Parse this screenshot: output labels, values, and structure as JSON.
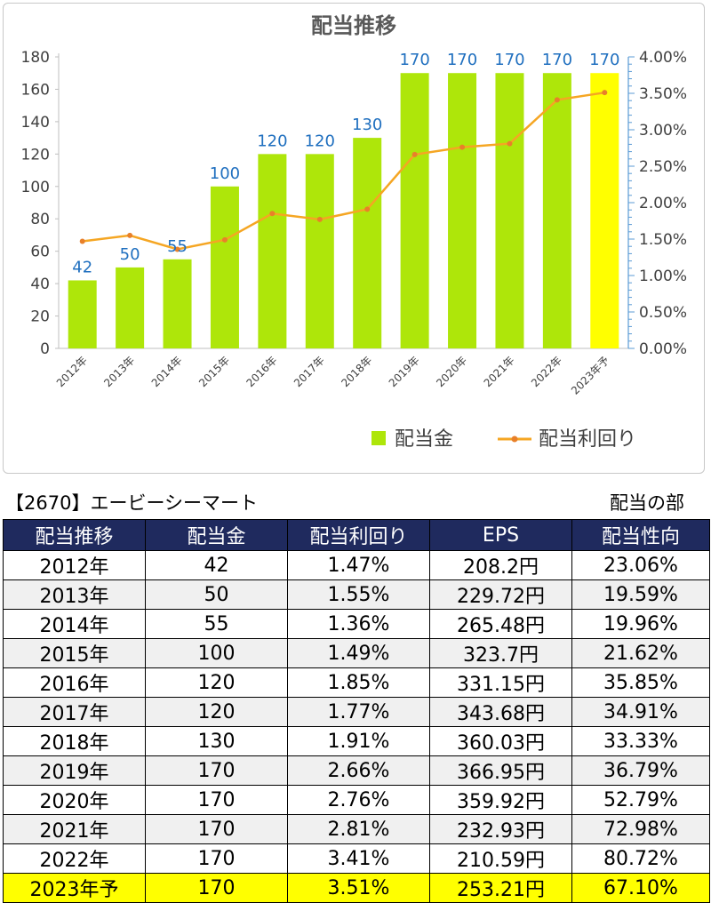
{
  "chart_data": {
    "type": "bar",
    "title": "配当推移",
    "categories": [
      "2012年",
      "2013年",
      "2014年",
      "2015年",
      "2016年",
      "2017年",
      "2018年",
      "2019年",
      "2020年",
      "2021年",
      "2022年",
      "2023年予"
    ],
    "series": [
      {
        "name": "配当金",
        "type": "bar",
        "values": [
          42,
          50,
          55,
          100,
          120,
          120,
          130,
          170,
          170,
          170,
          170,
          170
        ],
        "color": "#aee60a",
        "highlight_last_color": "#ffff00"
      },
      {
        "name": "配当利回り",
        "type": "line",
        "axis": "right",
        "values": [
          1.47,
          1.55,
          1.36,
          1.49,
          1.85,
          1.77,
          1.91,
          2.66,
          2.76,
          2.81,
          3.41,
          3.51
        ],
        "color": "#f5a623"
      }
    ],
    "y_left": {
      "min": 0,
      "max": 180,
      "ticks": [
        0,
        20,
        40,
        60,
        80,
        100,
        120,
        140,
        160,
        180
      ]
    },
    "y_right": {
      "min": 0,
      "max": 4,
      "ticks": [
        "0.00%",
        "0.50%",
        "1.00%",
        "1.50%",
        "2.00%",
        "2.50%",
        "3.00%",
        "3.50%",
        "4.00%"
      ]
    },
    "data_label_color": "#1f6fbf",
    "legend_position": "bottom-right"
  },
  "table": {
    "title": "【2670】エービーシーマート",
    "subtitle": "配当の部",
    "columns": [
      "配当推移",
      "配当金",
      "配当利回り",
      "EPS",
      "配当性向"
    ],
    "rows": [
      [
        "2012年",
        "42",
        "1.47%",
        "208.2円",
        "23.06%"
      ],
      [
        "2013年",
        "50",
        "1.55%",
        "229.72円",
        "19.59%"
      ],
      [
        "2014年",
        "55",
        "1.36%",
        "265.48円",
        "19.96%"
      ],
      [
        "2015年",
        "100",
        "1.49%",
        "323.7円",
        "21.62%"
      ],
      [
        "2016年",
        "120",
        "1.85%",
        "331.15円",
        "35.85%"
      ],
      [
        "2017年",
        "120",
        "1.77%",
        "343.68円",
        "34.91%"
      ],
      [
        "2018年",
        "130",
        "1.91%",
        "360.03円",
        "33.33%"
      ],
      [
        "2019年",
        "170",
        "2.66%",
        "366.95円",
        "36.79%"
      ],
      [
        "2020年",
        "170",
        "2.76%",
        "359.92円",
        "52.79%"
      ],
      [
        "2021年",
        "170",
        "2.81%",
        "232.93円",
        "72.98%"
      ],
      [
        "2022年",
        "170",
        "3.41%",
        "210.59円",
        "80.72%"
      ],
      [
        "2023年予",
        "170",
        "3.51%",
        "253.21円",
        "67.10%"
      ]
    ]
  }
}
